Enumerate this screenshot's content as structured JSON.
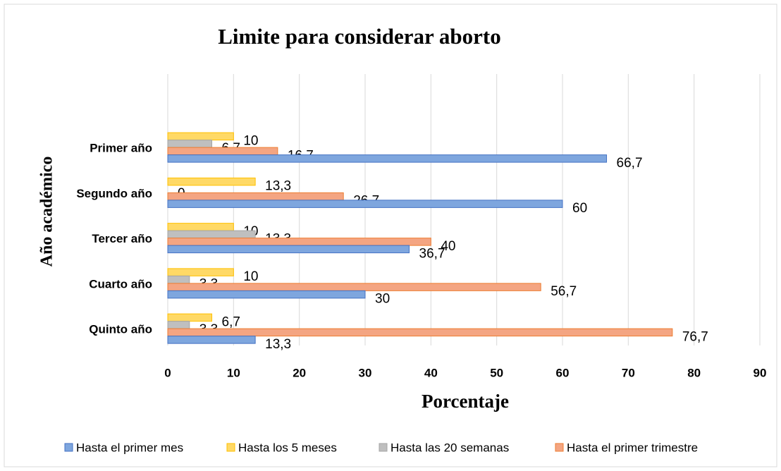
{
  "chart_data": {
    "type": "bar",
    "orientation": "horizontal",
    "title": "Limite para considerar aborto",
    "xlabel": "Porcentaje",
    "ylabel": "Año académico",
    "categories": [
      "Primer año",
      "Segundo año",
      "Tercer año",
      "Cuarto año",
      "Quinto año"
    ],
    "series": [
      {
        "name": "Hasta el primer mes",
        "color": "#7ea6de",
        "values": [
          66.7,
          60,
          36.7,
          30,
          13.3
        ],
        "value_labels": [
          "66,7",
          "60",
          "36,7",
          "30",
          "13,3"
        ]
      },
      {
        "name": "Hasta los 5 meses",
        "color": "#ffd966",
        "values": [
          10,
          13.3,
          10,
          10,
          6.7
        ],
        "value_labels": [
          "10",
          "13,3",
          "10",
          "10",
          "6,7"
        ]
      },
      {
        "name": "Hasta las 20 semanas",
        "color": "#bfbfbf",
        "values": [
          6.7,
          0,
          13.3,
          3.3,
          3.3
        ],
        "value_labels": [
          "6,7",
          "0",
          "13,3",
          "3,3",
          "3,3"
        ]
      },
      {
        "name": "Hasta el primer trimestre",
        "color": "#f4a582",
        "values": [
          16.7,
          26.7,
          40,
          56.7,
          76.7
        ],
        "value_labels": [
          "16,7",
          "26,7",
          "40",
          "56,7",
          "76,7"
        ]
      }
    ],
    "xlim": [
      0,
      90
    ],
    "xticks": [
      0,
      10,
      20,
      30,
      40,
      50,
      60,
      70,
      80,
      90
    ],
    "grid": true,
    "legend": "bottom"
  }
}
